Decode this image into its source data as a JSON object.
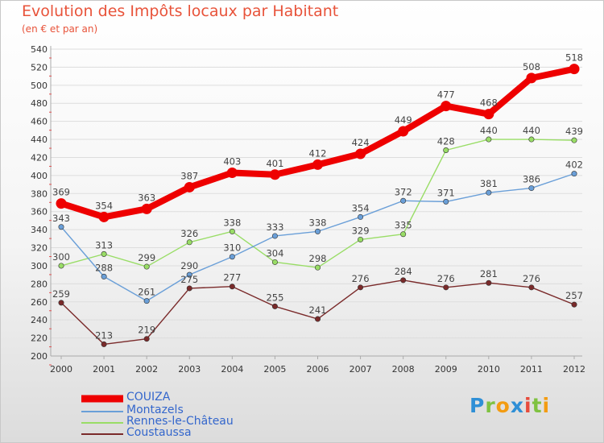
{
  "title": "Evolution des Impôts locaux par Habitant",
  "subtitle": "(en € et par an)",
  "colors": {
    "title": "#e8533a",
    "axis_text": "#333333",
    "grid": "#dddddd",
    "legend_text": "#3366cc"
  },
  "chart_data": {
    "type": "line",
    "title": "Evolution des Impôts locaux par Habitant",
    "subtitle": "(en € et par an)",
    "xlabel": "",
    "ylabel": "",
    "x": [
      2000,
      2001,
      2002,
      2003,
      2004,
      2005,
      2006,
      2007,
      2008,
      2009,
      2010,
      2011,
      2012
    ],
    "ylim": [
      200,
      540
    ],
    "yticks": [
      200,
      220,
      240,
      260,
      280,
      300,
      320,
      340,
      360,
      380,
      400,
      420,
      440,
      460,
      480,
      500,
      520,
      540
    ],
    "grid": true,
    "legend_position": "bottom-left",
    "series": [
      {
        "name": "COUIZA",
        "values": [
          369,
          354,
          363,
          387,
          403,
          401,
          412,
          424,
          449,
          477,
          468,
          508,
          518
        ],
        "color": "#ee0000"
      },
      {
        "name": "Montazels",
        "values": [
          343,
          288,
          261,
          290,
          310,
          333,
          338,
          354,
          372,
          371,
          381,
          386,
          402
        ],
        "color": "#6a9fd8"
      },
      {
        "name": "Rennes-le-Château",
        "values": [
          300,
          313,
          299,
          326,
          338,
          304,
          298,
          329,
          335,
          428,
          440,
          440,
          439
        ],
        "color": "#99dd66"
      },
      {
        "name": "Coustaussa",
        "values": [
          259,
          213,
          219,
          275,
          277,
          255,
          241,
          276,
          284,
          276,
          281,
          276,
          257
        ],
        "color": "#7a2a2a"
      }
    ]
  },
  "logo": {
    "letters": [
      "P",
      "r",
      "o",
      "x",
      "i",
      "t",
      "i"
    ],
    "colors": [
      "#2e8fd6",
      "#7fc241",
      "#f39c12",
      "#2e8fd6",
      "#e74c3c",
      "#7fc241",
      "#f39c12"
    ]
  }
}
